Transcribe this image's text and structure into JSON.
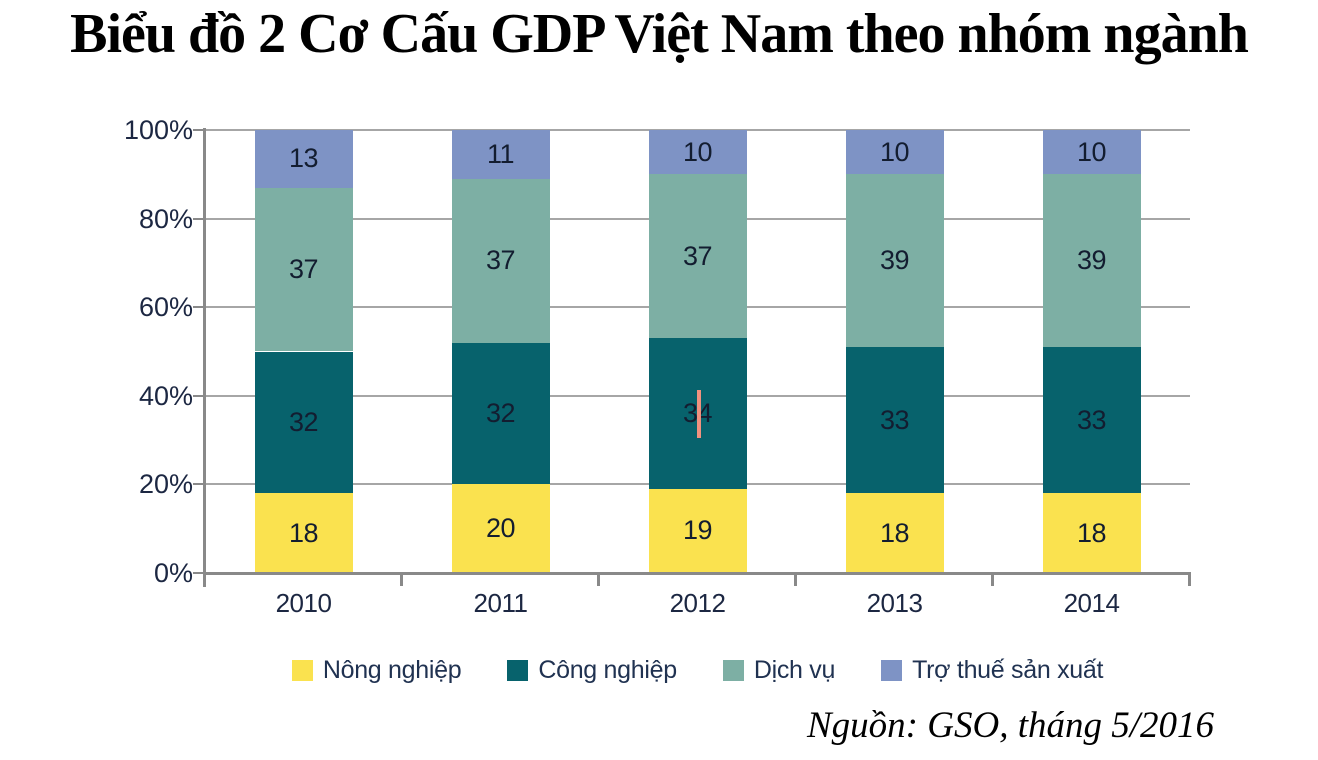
{
  "title": "Biểu đồ 2 Cơ Cấu GDP Việt Nam theo nhóm ngành",
  "source": "Nguồn: GSO, tháng 5/2016",
  "chart_data": {
    "type": "bar",
    "stacked": true,
    "title": "Biểu đồ 2 Cơ Cấu GDP Việt Nam theo nhóm ngành",
    "categories": [
      "2010",
      "2011",
      "2012",
      "2013",
      "2014"
    ],
    "series": [
      {
        "name": "Nông nghiệp",
        "color": "#FAE24F",
        "values": [
          18,
          20,
          19,
          18,
          18
        ]
      },
      {
        "name": "Công nghiệp",
        "color": "#07626C",
        "values": [
          32,
          32,
          34,
          33,
          33
        ]
      },
      {
        "name": "Dịch vụ",
        "color": "#7DAFA4",
        "values": [
          37,
          37,
          37,
          39,
          39
        ]
      },
      {
        "name": "Trợ thuế sản xuất",
        "color": "#7E93C5",
        "values": [
          13,
          11,
          10,
          10,
          10
        ]
      }
    ],
    "y_ticks": [
      "0%",
      "20%",
      "40%",
      "60%",
      "80%",
      "100%"
    ],
    "ylim": [
      0,
      100
    ],
    "xlabel": "",
    "ylabel": "",
    "grid": true,
    "legend_position": "bottom",
    "bar_value_labels": true,
    "text_cursor_artifact": {
      "category": "2012",
      "series": "Công nghiệp",
      "color": "#F1917F"
    }
  }
}
